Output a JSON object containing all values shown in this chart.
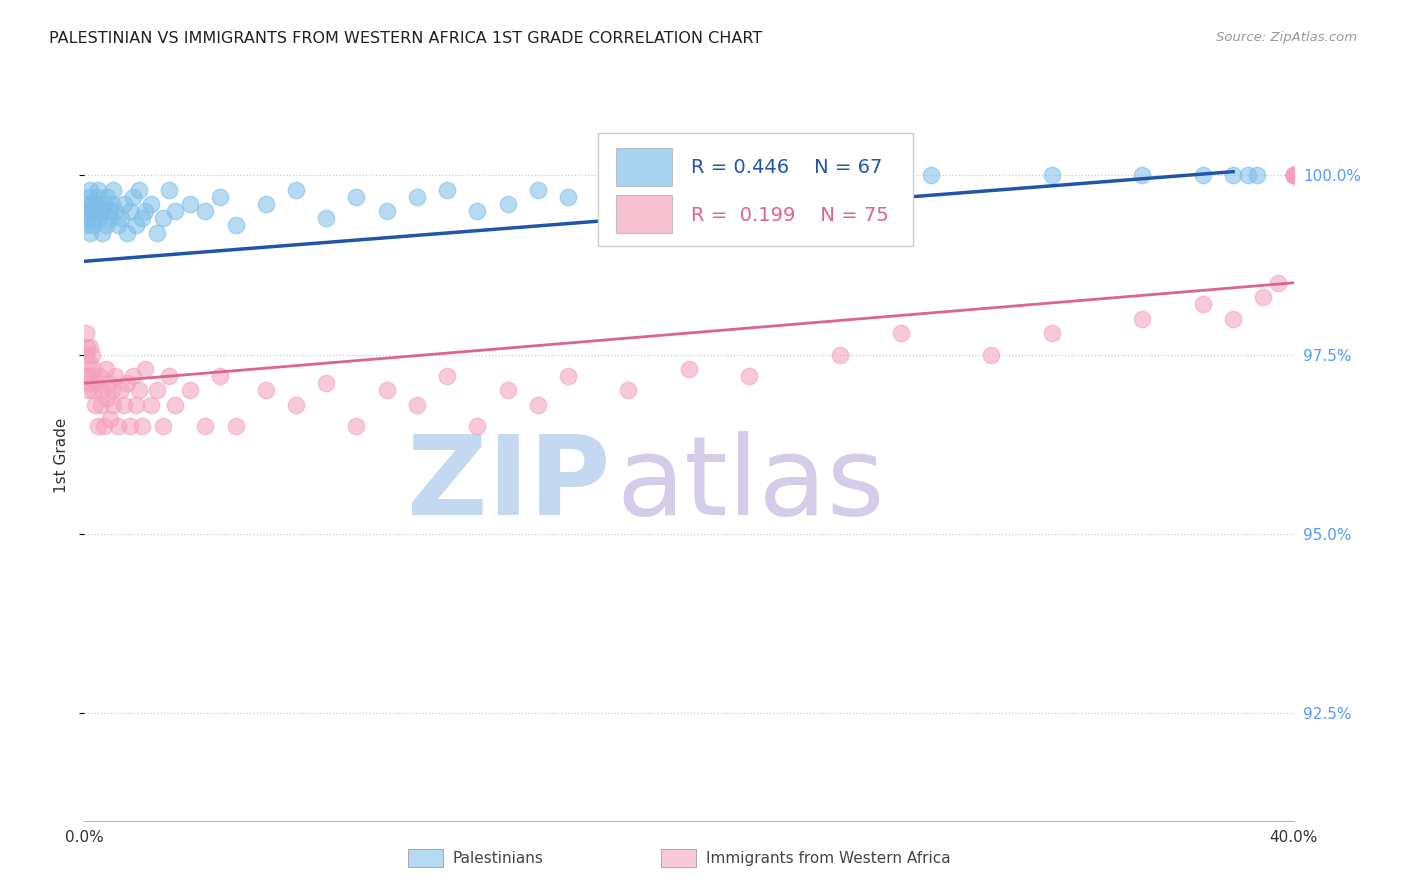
{
  "title": "PALESTINIAN VS IMMIGRANTS FROM WESTERN AFRICA 1ST GRADE CORRELATION CHART",
  "source": "Source: ZipAtlas.com",
  "ylabel": "1st Grade",
  "y_ticks": [
    92.5,
    95.0,
    97.5,
    100.0
  ],
  "y_tick_labels": [
    "92.5%",
    "95.0%",
    "97.5%",
    "100.0%"
  ],
  "xlim": [
    0.0,
    40.0
  ],
  "ylim": [
    91.0,
    101.2
  ],
  "blue_R": 0.446,
  "blue_N": 67,
  "pink_R": 0.199,
  "pink_N": 75,
  "blue_color": "#7bbde8",
  "pink_color": "#f4a0bb",
  "blue_line_color": "#2255aa",
  "pink_line_color": "#dd6688",
  "legend_text_color_blue": "#2255aa",
  "legend_text_color_pink": "#dd6688",
  "right_axis_color": "#5599ff",
  "title_color": "#222222",
  "watermark_color_zip": "#c8d8f0",
  "watermark_color_atlas": "#d0c8e8",
  "blue_line_x0": 0.0,
  "blue_line_y0": 98.8,
  "blue_line_x1": 38.0,
  "blue_line_y1": 100.05,
  "pink_line_x0": 0.0,
  "pink_line_y0": 97.1,
  "pink_line_x1": 40.0,
  "pink_line_y1": 98.5,
  "blue_pts_x": [
    0.05,
    0.07,
    0.1,
    0.12,
    0.15,
    0.18,
    0.2,
    0.22,
    0.25,
    0.28,
    0.3,
    0.35,
    0.4,
    0.42,
    0.45,
    0.5,
    0.55,
    0.6,
    0.65,
    0.7,
    0.75,
    0.8,
    0.85,
    0.9,
    0.95,
    1.0,
    1.1,
    1.2,
    1.3,
    1.4,
    1.5,
    1.6,
    1.7,
    1.8,
    1.9,
    2.0,
    2.2,
    2.4,
    2.6,
    2.8,
    3.0,
    3.5,
    4.0,
    4.5,
    5.0,
    6.0,
    7.0,
    8.0,
    9.0,
    10.0,
    11.0,
    12.0,
    13.0,
    14.0,
    15.0,
    16.0,
    18.0,
    20.0,
    22.0,
    25.0,
    28.0,
    32.0,
    35.0,
    37.0,
    38.0,
    38.5,
    38.8
  ],
  "blue_pts_y": [
    99.3,
    99.5,
    99.6,
    99.4,
    99.7,
    99.2,
    99.8,
    99.5,
    99.6,
    99.3,
    99.4,
    99.6,
    99.5,
    99.7,
    99.8,
    99.4,
    99.5,
    99.2,
    99.6,
    99.3,
    99.7,
    99.5,
    99.4,
    99.6,
    99.8,
    99.5,
    99.3,
    99.4,
    99.6,
    99.2,
    99.5,
    99.7,
    99.3,
    99.8,
    99.4,
    99.5,
    99.6,
    99.2,
    99.4,
    99.8,
    99.5,
    99.6,
    99.5,
    99.7,
    99.3,
    99.6,
    99.8,
    99.4,
    99.7,
    99.5,
    99.7,
    99.8,
    99.5,
    99.6,
    99.8,
    99.7,
    99.9,
    99.8,
    99.7,
    99.9,
    100.0,
    100.0,
    100.0,
    100.0,
    100.0,
    100.0,
    100.0
  ],
  "pink_pts_x": [
    0.04,
    0.06,
    0.08,
    0.1,
    0.12,
    0.15,
    0.18,
    0.2,
    0.22,
    0.25,
    0.28,
    0.3,
    0.35,
    0.4,
    0.45,
    0.5,
    0.55,
    0.6,
    0.65,
    0.7,
    0.75,
    0.8,
    0.85,
    0.9,
    0.95,
    1.0,
    1.1,
    1.2,
    1.3,
    1.4,
    1.5,
    1.6,
    1.7,
    1.8,
    1.9,
    2.0,
    2.2,
    2.4,
    2.6,
    2.8,
    3.0,
    3.5,
    4.0,
    4.5,
    5.0,
    6.0,
    7.0,
    8.0,
    9.0,
    10.0,
    11.0,
    12.0,
    13.0,
    14.0,
    15.0,
    16.0,
    18.0,
    20.0,
    22.0,
    25.0,
    27.0,
    30.0,
    32.0,
    35.0,
    37.0,
    38.0,
    39.0,
    39.5,
    40.0,
    40.0,
    40.0,
    40.0,
    40.0,
    40.0,
    40.0
  ],
  "pink_pts_y": [
    97.8,
    97.5,
    97.2,
    97.6,
    97.0,
    97.4,
    97.1,
    97.6,
    97.2,
    97.5,
    97.0,
    97.3,
    96.8,
    97.1,
    96.5,
    97.2,
    96.8,
    97.0,
    96.5,
    97.3,
    96.9,
    97.1,
    96.6,
    97.0,
    96.8,
    97.2,
    96.5,
    97.0,
    96.8,
    97.1,
    96.5,
    97.2,
    96.8,
    97.0,
    96.5,
    97.3,
    96.8,
    97.0,
    96.5,
    97.2,
    96.8,
    97.0,
    96.5,
    97.2,
    96.5,
    97.0,
    96.8,
    97.1,
    96.5,
    97.0,
    96.8,
    97.2,
    96.5,
    97.0,
    96.8,
    97.2,
    97.0,
    97.3,
    97.2,
    97.5,
    97.8,
    97.5,
    97.8,
    98.0,
    98.2,
    98.0,
    98.3,
    98.5,
    100.0,
    100.0,
    100.0,
    100.0,
    100.0,
    100.0,
    100.0
  ]
}
